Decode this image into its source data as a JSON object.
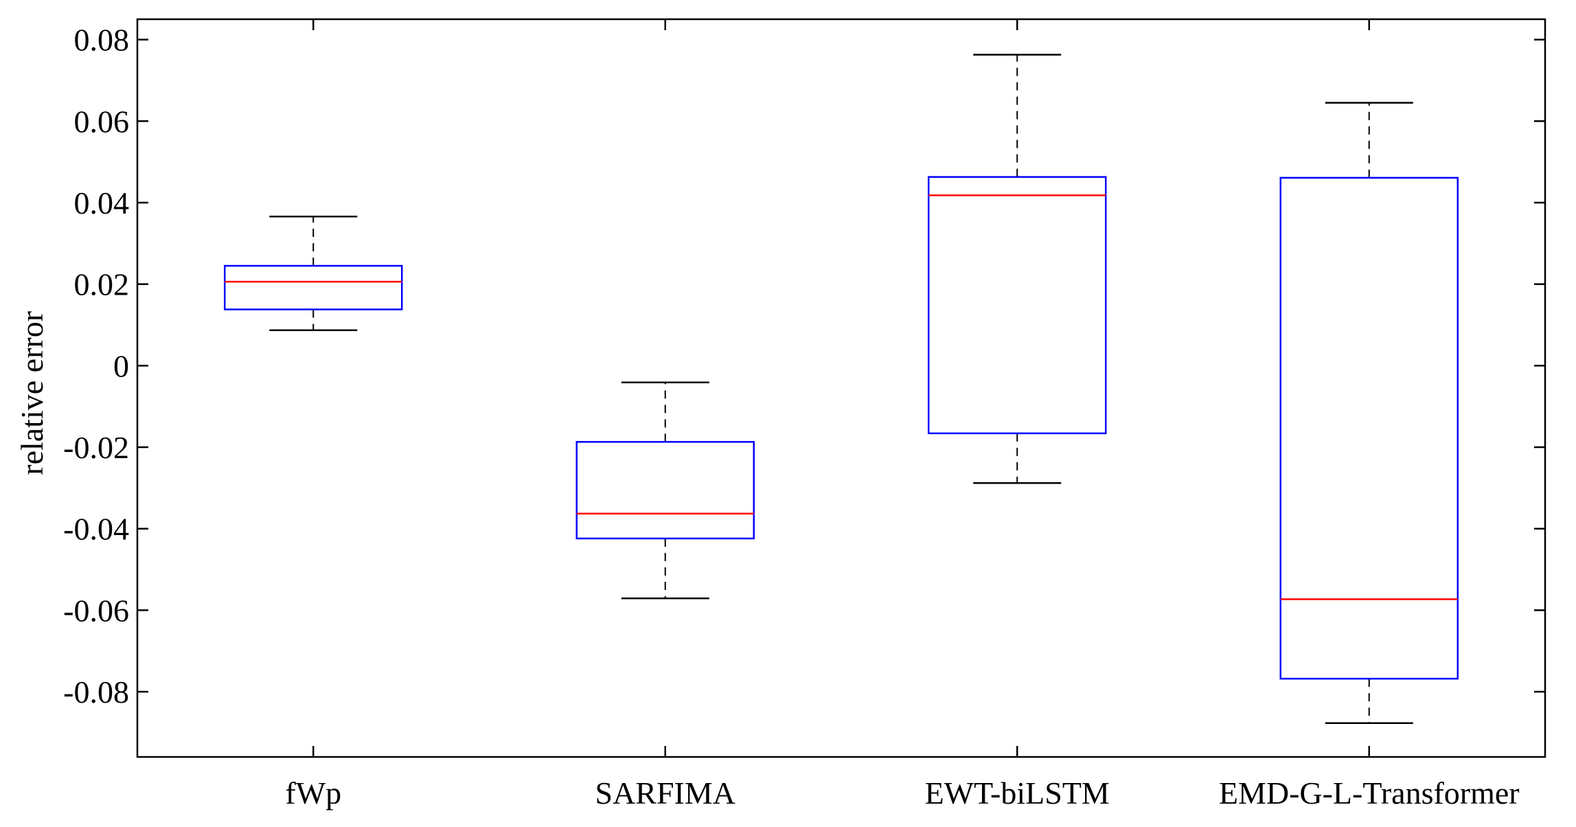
{
  "chart_data": {
    "type": "box",
    "title": "",
    "xlabel": "",
    "ylabel": "relative error",
    "ylim": [
      -0.096,
      0.085
    ],
    "yticks": [
      -0.08,
      -0.06,
      -0.04,
      -0.02,
      0,
      0.02,
      0.04,
      0.06,
      0.08
    ],
    "ytick_labels": [
      "-0.08",
      "-0.06",
      "-0.04",
      "-0.02",
      "0",
      "0.02",
      "0.04",
      "0.06",
      "0.08"
    ],
    "grid": false,
    "categories": [
      "fWp",
      "SARFIMA",
      "EWT-biLSTM",
      "EMD-G-L-Transformer"
    ],
    "boxes": [
      {
        "category": "fWp",
        "whisker_low": 0.0087,
        "q1": 0.0138,
        "median": 0.0206,
        "q3": 0.0245,
        "whisker_high": 0.0366
      },
      {
        "category": "SARFIMA",
        "whisker_low": -0.0571,
        "q1": -0.0424,
        "median": -0.0363,
        "q3": -0.0187,
        "whisker_high": -0.0041
      },
      {
        "category": "EWT-biLSTM",
        "whisker_low": -0.0288,
        "q1": -0.0166,
        "median": 0.0418,
        "q3": 0.0463,
        "whisker_high": 0.0763
      },
      {
        "category": "EMD-G-L-Transformer",
        "whisker_low": -0.0877,
        "q1": -0.0768,
        "median": -0.0573,
        "q3": 0.0461,
        "whisker_high": 0.0645
      }
    ],
    "colors": {
      "box": "#0000ff",
      "median": "#ff0000",
      "whisker": "#000000",
      "axis": "#000000"
    }
  }
}
